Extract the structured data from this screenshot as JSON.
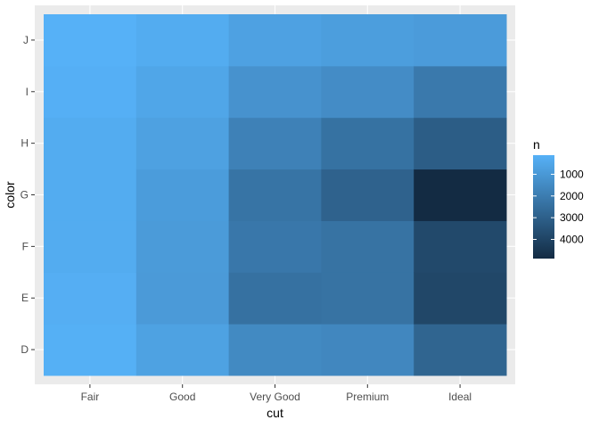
{
  "chart_data": {
    "type": "heatmap",
    "xlabel": "cut",
    "ylabel": "color",
    "x_categories": [
      "Fair",
      "Good",
      "Very Good",
      "Premium",
      "Ideal"
    ],
    "y_categories": [
      "D",
      "E",
      "F",
      "G",
      "H",
      "I",
      "J"
    ],
    "fill_label": "n",
    "fill_range": [
      119,
      4884
    ],
    "fill_breaks": [
      1000,
      2000,
      3000,
      4000
    ],
    "fill_break_labels": [
      "1000",
      "2000",
      "3000",
      "4000"
    ],
    "color_low": "#56B1F7",
    "color_high": "#132B43",
    "panel_background": "#EBEBEB",
    "grid": true,
    "legend_position": "right",
    "cells": [
      {
        "x": "Fair",
        "y": "D",
        "n": 163
      },
      {
        "x": "Fair",
        "y": "E",
        "n": 224
      },
      {
        "x": "Fair",
        "y": "F",
        "n": 312
      },
      {
        "x": "Fair",
        "y": "G",
        "n": 314
      },
      {
        "x": "Fair",
        "y": "H",
        "n": 303
      },
      {
        "x": "Fair",
        "y": "I",
        "n": 175
      },
      {
        "x": "Fair",
        "y": "J",
        "n": 119
      },
      {
        "x": "Good",
        "y": "D",
        "n": 662
      },
      {
        "x": "Good",
        "y": "E",
        "n": 933
      },
      {
        "x": "Good",
        "y": "F",
        "n": 909
      },
      {
        "x": "Good",
        "y": "G",
        "n": 871
      },
      {
        "x": "Good",
        "y": "H",
        "n": 702
      },
      {
        "x": "Good",
        "y": "I",
        "n": 522
      },
      {
        "x": "Good",
        "y": "J",
        "n": 307
      },
      {
        "x": "Very Good",
        "y": "D",
        "n": 1513
      },
      {
        "x": "Very Good",
        "y": "E",
        "n": 2400
      },
      {
        "x": "Very Good",
        "y": "F",
        "n": 2164
      },
      {
        "x": "Very Good",
        "y": "G",
        "n": 2299
      },
      {
        "x": "Very Good",
        "y": "H",
        "n": 1824
      },
      {
        "x": "Very Good",
        "y": "I",
        "n": 1204
      },
      {
        "x": "Very Good",
        "y": "J",
        "n": 678
      },
      {
        "x": "Premium",
        "y": "D",
        "n": 1603
      },
      {
        "x": "Premium",
        "y": "E",
        "n": 2337
      },
      {
        "x": "Premium",
        "y": "F",
        "n": 2331
      },
      {
        "x": "Premium",
        "y": "G",
        "n": 2924
      },
      {
        "x": "Premium",
        "y": "H",
        "n": 2360
      },
      {
        "x": "Premium",
        "y": "I",
        "n": 1428
      },
      {
        "x": "Premium",
        "y": "J",
        "n": 808
      },
      {
        "x": "Ideal",
        "y": "D",
        "n": 2834
      },
      {
        "x": "Ideal",
        "y": "E",
        "n": 3903
      },
      {
        "x": "Ideal",
        "y": "F",
        "n": 3826
      },
      {
        "x": "Ideal",
        "y": "G",
        "n": 4884
      },
      {
        "x": "Ideal",
        "y": "H",
        "n": 3115
      },
      {
        "x": "Ideal",
        "y": "I",
        "n": 2093
      },
      {
        "x": "Ideal",
        "y": "J",
        "n": 896
      }
    ]
  }
}
